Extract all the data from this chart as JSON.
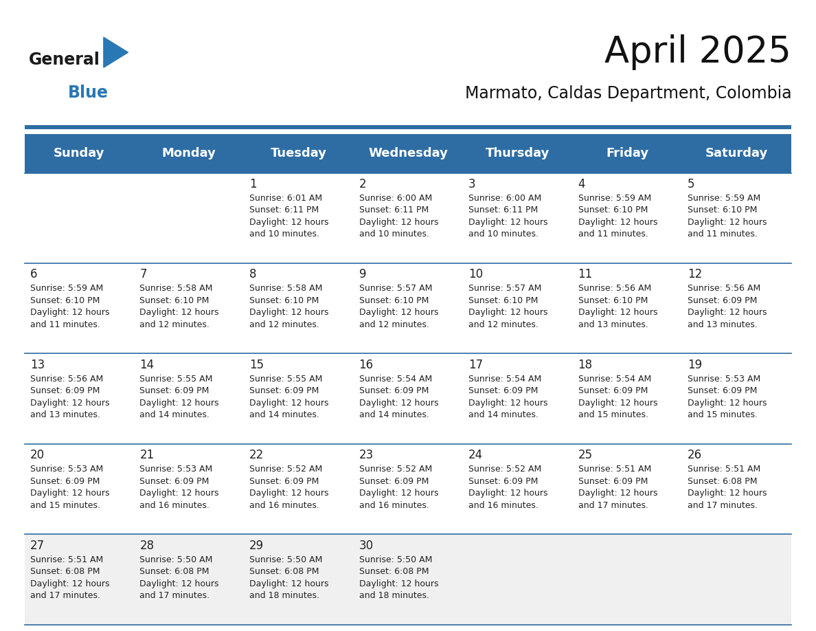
{
  "title": "April 2025",
  "subtitle": "Marmato, Caldas Department, Colombia",
  "header_bg_color": "#2E6DA4",
  "header_text_color": "#FFFFFF",
  "cell_bg_color": "#FFFFFF",
  "last_row_bg_color": "#F0F0F0",
  "day_number_color": "#222222",
  "cell_text_color": "#222222",
  "divider_color": "#2E6DA4",
  "days_of_week": [
    "Sunday",
    "Monday",
    "Tuesday",
    "Wednesday",
    "Thursday",
    "Friday",
    "Saturday"
  ],
  "weeks": [
    [
      {
        "day": "",
        "info": ""
      },
      {
        "day": "",
        "info": ""
      },
      {
        "day": "1",
        "info": "Sunrise: 6:01 AM\nSunset: 6:11 PM\nDaylight: 12 hours\nand 10 minutes."
      },
      {
        "day": "2",
        "info": "Sunrise: 6:00 AM\nSunset: 6:11 PM\nDaylight: 12 hours\nand 10 minutes."
      },
      {
        "day": "3",
        "info": "Sunrise: 6:00 AM\nSunset: 6:11 PM\nDaylight: 12 hours\nand 10 minutes."
      },
      {
        "day": "4",
        "info": "Sunrise: 5:59 AM\nSunset: 6:10 PM\nDaylight: 12 hours\nand 11 minutes."
      },
      {
        "day": "5",
        "info": "Sunrise: 5:59 AM\nSunset: 6:10 PM\nDaylight: 12 hours\nand 11 minutes."
      }
    ],
    [
      {
        "day": "6",
        "info": "Sunrise: 5:59 AM\nSunset: 6:10 PM\nDaylight: 12 hours\nand 11 minutes."
      },
      {
        "day": "7",
        "info": "Sunrise: 5:58 AM\nSunset: 6:10 PM\nDaylight: 12 hours\nand 12 minutes."
      },
      {
        "day": "8",
        "info": "Sunrise: 5:58 AM\nSunset: 6:10 PM\nDaylight: 12 hours\nand 12 minutes."
      },
      {
        "day": "9",
        "info": "Sunrise: 5:57 AM\nSunset: 6:10 PM\nDaylight: 12 hours\nand 12 minutes."
      },
      {
        "day": "10",
        "info": "Sunrise: 5:57 AM\nSunset: 6:10 PM\nDaylight: 12 hours\nand 12 minutes."
      },
      {
        "day": "11",
        "info": "Sunrise: 5:56 AM\nSunset: 6:10 PM\nDaylight: 12 hours\nand 13 minutes."
      },
      {
        "day": "12",
        "info": "Sunrise: 5:56 AM\nSunset: 6:09 PM\nDaylight: 12 hours\nand 13 minutes."
      }
    ],
    [
      {
        "day": "13",
        "info": "Sunrise: 5:56 AM\nSunset: 6:09 PM\nDaylight: 12 hours\nand 13 minutes."
      },
      {
        "day": "14",
        "info": "Sunrise: 5:55 AM\nSunset: 6:09 PM\nDaylight: 12 hours\nand 14 minutes."
      },
      {
        "day": "15",
        "info": "Sunrise: 5:55 AM\nSunset: 6:09 PM\nDaylight: 12 hours\nand 14 minutes."
      },
      {
        "day": "16",
        "info": "Sunrise: 5:54 AM\nSunset: 6:09 PM\nDaylight: 12 hours\nand 14 minutes."
      },
      {
        "day": "17",
        "info": "Sunrise: 5:54 AM\nSunset: 6:09 PM\nDaylight: 12 hours\nand 14 minutes."
      },
      {
        "day": "18",
        "info": "Sunrise: 5:54 AM\nSunset: 6:09 PM\nDaylight: 12 hours\nand 15 minutes."
      },
      {
        "day": "19",
        "info": "Sunrise: 5:53 AM\nSunset: 6:09 PM\nDaylight: 12 hours\nand 15 minutes."
      }
    ],
    [
      {
        "day": "20",
        "info": "Sunrise: 5:53 AM\nSunset: 6:09 PM\nDaylight: 12 hours\nand 15 minutes."
      },
      {
        "day": "21",
        "info": "Sunrise: 5:53 AM\nSunset: 6:09 PM\nDaylight: 12 hours\nand 16 minutes."
      },
      {
        "day": "22",
        "info": "Sunrise: 5:52 AM\nSunset: 6:09 PM\nDaylight: 12 hours\nand 16 minutes."
      },
      {
        "day": "23",
        "info": "Sunrise: 5:52 AM\nSunset: 6:09 PM\nDaylight: 12 hours\nand 16 minutes."
      },
      {
        "day": "24",
        "info": "Sunrise: 5:52 AM\nSunset: 6:09 PM\nDaylight: 12 hours\nand 16 minutes."
      },
      {
        "day": "25",
        "info": "Sunrise: 5:51 AM\nSunset: 6:09 PM\nDaylight: 12 hours\nand 17 minutes."
      },
      {
        "day": "26",
        "info": "Sunrise: 5:51 AM\nSunset: 6:08 PM\nDaylight: 12 hours\nand 17 minutes."
      }
    ],
    [
      {
        "day": "27",
        "info": "Sunrise: 5:51 AM\nSunset: 6:08 PM\nDaylight: 12 hours\nand 17 minutes."
      },
      {
        "day": "28",
        "info": "Sunrise: 5:50 AM\nSunset: 6:08 PM\nDaylight: 12 hours\nand 17 minutes."
      },
      {
        "day": "29",
        "info": "Sunrise: 5:50 AM\nSunset: 6:08 PM\nDaylight: 12 hours\nand 18 minutes."
      },
      {
        "day": "30",
        "info": "Sunrise: 5:50 AM\nSunset: 6:08 PM\nDaylight: 12 hours\nand 18 minutes."
      },
      {
        "day": "",
        "info": ""
      },
      {
        "day": "",
        "info": ""
      },
      {
        "day": "",
        "info": ""
      }
    ]
  ],
  "logo_text_general": "General",
  "logo_text_blue": "Blue",
  "logo_color_general": "#1a1a1a",
  "logo_color_blue": "#2878b5",
  "logo_triangle_color": "#2878b5",
  "title_fontsize": 38,
  "subtitle_fontsize": 17,
  "header_fontsize": 13,
  "day_num_fontsize": 12,
  "cell_info_fontsize": 9
}
